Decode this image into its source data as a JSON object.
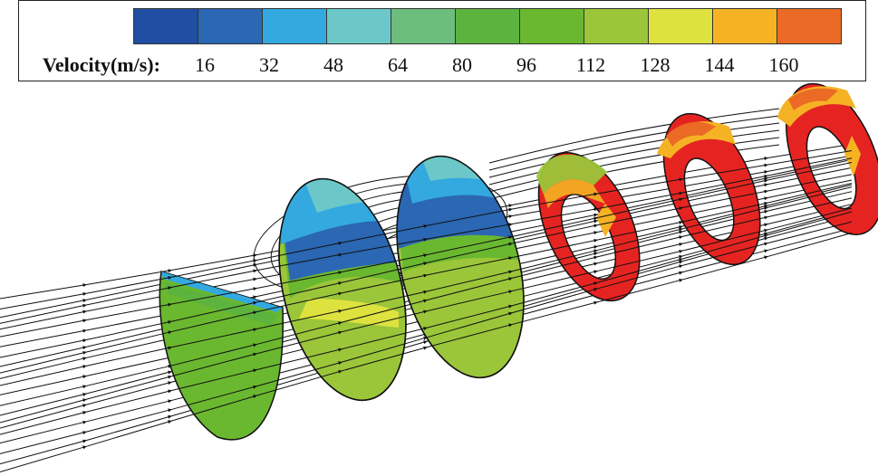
{
  "legend": {
    "title": "Velocity(m/s):",
    "ticks": [
      "16",
      "32",
      "48",
      "64",
      "80",
      "96",
      "112",
      "128",
      "144",
      "160"
    ],
    "colors": [
      "#1f4ea3",
      "#2b67b3",
      "#33a9e0",
      "#6cc8c8",
      "#6dbd7d",
      "#5cb43e",
      "#6ab82f",
      "#9bc63a",
      "#dde23f",
      "#f5b324",
      "#ea6a26",
      "#e52421"
    ]
  },
  "scene": {
    "cross_sections": [
      "full-ellipse",
      "full-ellipse",
      "full-ellipse",
      "annulus",
      "annulus",
      "annulus"
    ],
    "streamline_color": "#111111"
  }
}
